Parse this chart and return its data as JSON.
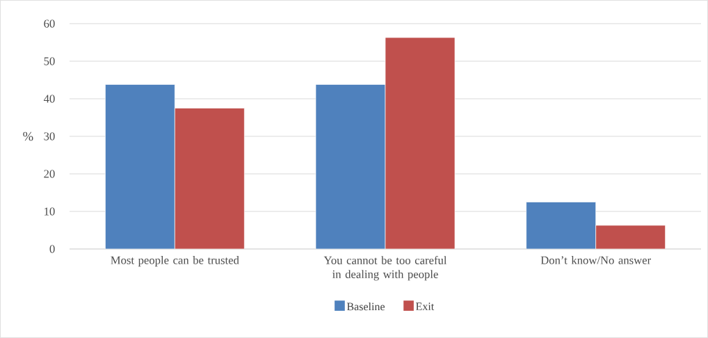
{
  "chart_data": {
    "type": "bar",
    "ylabel": "%",
    "categories": [
      "Most people can be trusted",
      "You cannot be too careful in dealing with people",
      "Don’t know/No answer"
    ],
    "series": [
      {
        "name": "Baseline",
        "color": "#4f81bd",
        "values": [
          43.8,
          43.8,
          12.5
        ]
      },
      {
        "name": "Exit",
        "color": "#c0504d",
        "values": [
          37.5,
          56.3,
          6.3
        ]
      }
    ],
    "ylim": [
      0,
      60
    ],
    "yticks": [
      0,
      10,
      20,
      30,
      40,
      50,
      60
    ],
    "grid": "y",
    "legend": "bottom"
  }
}
